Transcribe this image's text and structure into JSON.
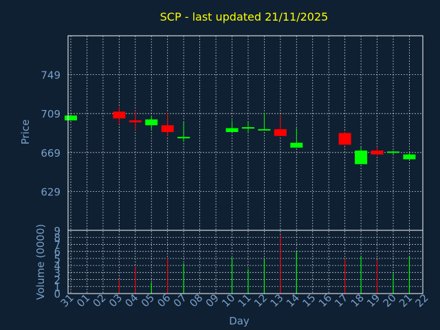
{
  "colors": {
    "background": "#0f2033",
    "title": "#ffff00",
    "axis_text": "#7aa0c8",
    "frame": "#ffffff",
    "grid": "#ffffff",
    "up": "#00ff00",
    "down": "#ff0000"
  },
  "chart_data": {
    "type": "candlestick",
    "title": "SCP - last updated 21/11/2025",
    "xlabel": "Day",
    "ylabel_price": "Price",
    "ylabel_volume": "Volume (0000)",
    "x_tick_labels": [
      "31",
      "01",
      "02",
      "03",
      "04",
      "05",
      "06",
      "07",
      "08",
      "09",
      "10",
      "11",
      "12",
      "13",
      "14",
      "15",
      "16",
      "17",
      "18",
      "19",
      "20",
      "21",
      "22"
    ],
    "price_ticks": [
      629,
      669,
      709,
      749
    ],
    "price_range": [
      589,
      789
    ],
    "volume_ticks": [
      0,
      1,
      2,
      3,
      4,
      5,
      6,
      7,
      8,
      9
    ],
    "volume_tick_labels": [
      "0",
      "1",
      "2",
      "3",
      "4",
      "5",
      "6",
      "7",
      "8",
      "9"
    ],
    "volume_range": [
      0,
      9
    ],
    "grid": true,
    "candles": [
      {
        "day": "31",
        "open": 702,
        "high": 708,
        "low": 702,
        "close": 707,
        "volume": null
      },
      {
        "day": "03",
        "open": 711,
        "high": 716,
        "low": 698,
        "close": 704,
        "volume": 2.0
      },
      {
        "day": "04",
        "open": 702,
        "high": 712,
        "low": 692,
        "close": 700,
        "volume": 3.8
      },
      {
        "day": "05",
        "open": 697,
        "high": 706,
        "low": 693,
        "close": 703,
        "volume": 1.6
      },
      {
        "day": "06",
        "open": 697,
        "high": 710,
        "low": 686,
        "close": 690,
        "volume": 5.0
      },
      {
        "day": "07",
        "open": 684,
        "high": 700,
        "low": 680,
        "close": 685,
        "volume": 4.3
      },
      {
        "day": "10",
        "open": 690,
        "high": 702,
        "low": 689,
        "close": 694,
        "volume": 5.1
      },
      {
        "day": "11",
        "open": 695,
        "high": 700,
        "low": 689,
        "close": 695,
        "volume": 3.5
      },
      {
        "day": "12",
        "open": 692,
        "high": 710,
        "low": 692,
        "close": 693,
        "volume": 4.9
      },
      {
        "day": "13",
        "open": 693,
        "high": 708,
        "low": 686,
        "close": 686,
        "volume": 8.3
      },
      {
        "day": "14",
        "open": 674,
        "high": 694,
        "low": 674,
        "close": 679,
        "volume": 6.0
      },
      {
        "day": "17",
        "open": 689,
        "high": 690,
        "low": 677,
        "close": 677,
        "volume": 4.9
      },
      {
        "day": "18",
        "open": 657,
        "high": 675,
        "low": 657,
        "close": 671,
        "volume": 5.4
      },
      {
        "day": "19",
        "open": 671,
        "high": 675,
        "low": 666,
        "close": 667,
        "volume": 4.8
      },
      {
        "day": "20",
        "open": 669,
        "high": 671,
        "low": 667,
        "close": 670,
        "volume": 2.8
      },
      {
        "day": "21",
        "open": 662,
        "high": 670,
        "low": 662,
        "close": 667,
        "volume": 5.2
      }
    ]
  }
}
